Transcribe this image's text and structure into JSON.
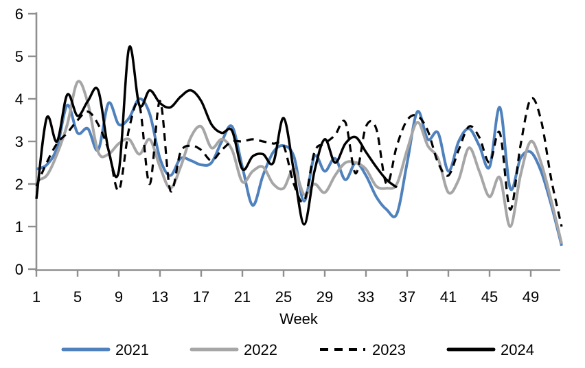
{
  "chart_data": {
    "type": "line",
    "title": "",
    "xlabel": "Week",
    "ylabel": "",
    "grid": false,
    "legend_position": "bottom",
    "axis_color": "#8f8f8f",
    "text_color": "#000000",
    "xlim": [
      1,
      52
    ],
    "ylim": [
      0,
      6
    ],
    "x_ticks": [
      1,
      5,
      9,
      13,
      17,
      21,
      25,
      29,
      33,
      37,
      41,
      45,
      49
    ],
    "y_ticks": [
      0,
      1,
      2,
      3,
      4,
      5,
      6
    ],
    "x": [
      1,
      2,
      3,
      4,
      5,
      6,
      7,
      8,
      9,
      10,
      11,
      12,
      13,
      14,
      15,
      16,
      17,
      18,
      19,
      20,
      21,
      22,
      23,
      24,
      25,
      26,
      27,
      28,
      29,
      30,
      31,
      32,
      33,
      34,
      35,
      36,
      37,
      38,
      39,
      40,
      41,
      42,
      43,
      44,
      45,
      46,
      47,
      48,
      49,
      50,
      51,
      52
    ],
    "series": [
      {
        "name": "2021",
        "color": "#4f81bd",
        "style": "solid",
        "width": 4,
        "values": [
          2.35,
          2.45,
          2.85,
          3.85,
          3.2,
          3.3,
          2.8,
          3.9,
          3.4,
          3.55,
          4.0,
          3.65,
          2.6,
          2.2,
          2.6,
          2.55,
          2.45,
          2.5,
          3.0,
          3.35,
          2.4,
          1.5,
          2.2,
          2.75,
          2.9,
          2.65,
          1.6,
          2.65,
          2.3,
          2.6,
          2.1,
          2.5,
          2.2,
          1.7,
          1.4,
          1.3,
          2.5,
          3.7,
          3.05,
          3.2,
          2.3,
          3.0,
          3.3,
          2.9,
          2.4,
          3.8,
          1.9,
          2.6,
          2.75,
          2.3,
          1.5,
          0.55
        ]
      },
      {
        "name": "2022",
        "color": "#a6a6a6",
        "style": "solid",
        "width": 4,
        "values": [
          2.1,
          2.2,
          2.7,
          3.4,
          4.4,
          3.9,
          2.75,
          2.7,
          2.95,
          3.05,
          2.7,
          3.05,
          2.4,
          1.9,
          2.4,
          3.1,
          3.35,
          2.85,
          3.05,
          2.8,
          2.05,
          2.3,
          2.4,
          2.0,
          1.9,
          2.35,
          1.75,
          2.0,
          1.8,
          2.2,
          2.5,
          2.5,
          2.35,
          1.95,
          1.9,
          2.0,
          2.8,
          3.45,
          2.9,
          2.6,
          1.8,
          2.1,
          2.85,
          2.3,
          1.7,
          2.15,
          1.0,
          2.2,
          3.0,
          2.5,
          1.6,
          0.6
        ]
      },
      {
        "name": "2023",
        "color": "#000000",
        "style": "dashed",
        "width": 3.2,
        "values": [
          1.95,
          2.5,
          2.95,
          3.2,
          3.5,
          3.7,
          3.4,
          2.8,
          1.85,
          3.3,
          3.85,
          2.0,
          3.95,
          1.85,
          2.75,
          2.9,
          2.8,
          2.55,
          2.8,
          3.0,
          3.0,
          3.05,
          3.0,
          2.95,
          2.9,
          2.0,
          1.6,
          2.75,
          2.95,
          3.15,
          3.45,
          2.25,
          3.35,
          3.3,
          2.0,
          2.9,
          3.5,
          3.6,
          3.25,
          2.5,
          2.2,
          2.8,
          3.35,
          3.1,
          2.5,
          3.2,
          1.4,
          2.9,
          4.0,
          3.5,
          2.1,
          1.0
        ]
      },
      {
        "name": "2024",
        "color": "#000000",
        "style": "solid",
        "width": 3.5,
        "values": [
          1.65,
          3.55,
          3.0,
          4.1,
          3.6,
          3.95,
          4.2,
          2.8,
          2.3,
          5.2,
          3.85,
          4.2,
          3.9,
          3.8,
          4.05,
          4.2,
          3.95,
          3.4,
          3.2,
          3.25,
          2.35,
          2.65,
          2.7,
          2.5,
          3.55,
          2.3,
          1.05,
          2.3,
          3.05,
          2.5,
          2.95,
          3.1,
          2.75,
          2.4,
          2.1,
          1.92
        ]
      }
    ],
    "legend": {
      "items": [
        "2021",
        "2022",
        "2023",
        "2024"
      ]
    }
  }
}
